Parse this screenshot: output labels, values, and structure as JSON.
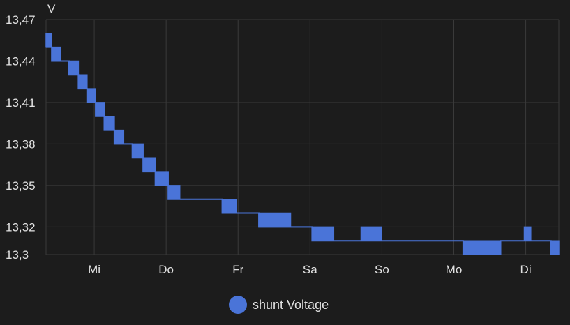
{
  "chart_data": {
    "type": "line",
    "title": "",
    "ylabel": "V",
    "xlabel": "",
    "ylim": [
      13.3,
      13.47
    ],
    "yticks": [
      {
        "value": 13.47,
        "label": "13,47"
      },
      {
        "value": 13.44,
        "label": "13,44"
      },
      {
        "value": 13.41,
        "label": "13,41"
      },
      {
        "value": 13.38,
        "label": "13,38"
      },
      {
        "value": 13.35,
        "label": "13,35"
      },
      {
        "value": 13.32,
        "label": "13,32"
      },
      {
        "value": 13.3,
        "label": "13,3"
      }
    ],
    "xlim": [
      0,
      7.13
    ],
    "xticks": [
      {
        "value": 0.67,
        "label": "Mi"
      },
      {
        "value": 1.67,
        "label": "Do"
      },
      {
        "value": 2.67,
        "label": "Fr"
      },
      {
        "value": 3.67,
        "label": "Sa"
      },
      {
        "value": 4.67,
        "label": "So"
      },
      {
        "value": 5.67,
        "label": "Mo"
      },
      {
        "value": 6.67,
        "label": "Di"
      }
    ],
    "grid": true,
    "legend_position": "bottom",
    "series": [
      {
        "name": "shunt Voltage",
        "color": "#4a74d8",
        "x_unit": "days",
        "band": [
          [
            0.0,
            13.45,
            13.46
          ],
          [
            0.08,
            13.44,
            13.45
          ],
          [
            0.2,
            13.44,
            13.44
          ],
          [
            0.32,
            13.43,
            13.44
          ],
          [
            0.45,
            13.42,
            13.43
          ],
          [
            0.57,
            13.41,
            13.42
          ],
          [
            0.69,
            13.4,
            13.41
          ],
          [
            0.81,
            13.39,
            13.4
          ],
          [
            0.95,
            13.38,
            13.39
          ],
          [
            1.08,
            13.38,
            13.38
          ],
          [
            1.2,
            13.37,
            13.38
          ],
          [
            1.35,
            13.36,
            13.37
          ],
          [
            1.52,
            13.35,
            13.36
          ],
          [
            1.7,
            13.34,
            13.35
          ],
          [
            1.86,
            13.34,
            13.34
          ],
          [
            2.45,
            13.33,
            13.34
          ],
          [
            2.65,
            13.33,
            13.33
          ],
          [
            2.96,
            13.32,
            13.33
          ],
          [
            3.2,
            13.32,
            13.33
          ],
          [
            3.4,
            13.32,
            13.32
          ],
          [
            3.7,
            13.31,
            13.32
          ],
          [
            4.0,
            13.31,
            13.31
          ],
          [
            4.38,
            13.31,
            13.32
          ],
          [
            4.66,
            13.31,
            13.31
          ],
          [
            5.8,
            13.3,
            13.31
          ],
          [
            6.32,
            13.31,
            13.31
          ],
          [
            6.65,
            13.31,
            13.32
          ],
          [
            6.74,
            13.31,
            13.31
          ],
          [
            7.02,
            13.3,
            13.31
          ],
          [
            7.13,
            13.3,
            13.31
          ]
        ]
      }
    ]
  }
}
